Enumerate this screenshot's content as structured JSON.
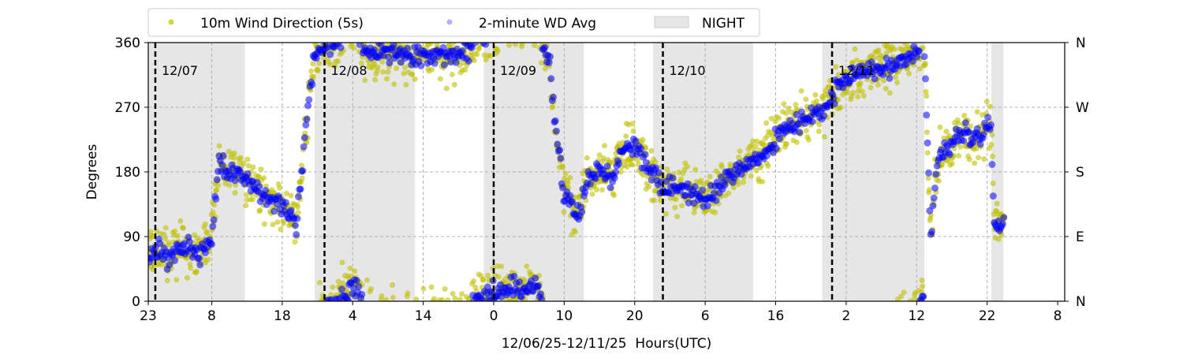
{
  "chart_data": {
    "type": "scatter",
    "xlabel": "12/06/25-12/11/25  Hours(UTC)",
    "ylabel": "Degrees",
    "x_unit": "hours since 12/06/25 23:00 UTC",
    "xlim": [
      0,
      130
    ],
    "ylim": [
      0,
      360
    ],
    "x_ticks": [
      0,
      9,
      19,
      29,
      39,
      49,
      59,
      69,
      79,
      89,
      99,
      109,
      119,
      129
    ],
    "x_tick_labels": [
      "23",
      "8",
      "18",
      "4",
      "14",
      "0",
      "10",
      "20",
      "6",
      "16",
      "2",
      "12",
      "22",
      "8"
    ],
    "y_ticks": [
      0,
      90,
      180,
      270,
      360
    ],
    "y_tick_labels": [
      "0",
      "90",
      "180",
      "270",
      "360"
    ],
    "y2_tick_labels": [
      "N",
      "E",
      "S",
      "W",
      "N"
    ],
    "grid": true,
    "legend_placement": "top",
    "legend": [
      {
        "label": "10m Wind Direction (5s)",
        "color": "#bfbf00",
        "kind": "point"
      },
      {
        "label": "2-minute WD Avg",
        "color": "#0000ff",
        "kind": "point"
      },
      {
        "label": "NIGHT",
        "color": "#e6e6e6",
        "kind": "patch"
      }
    ],
    "day_markers": [
      {
        "x": 1,
        "label": "12/07"
      },
      {
        "x": 25,
        "label": "12/08"
      },
      {
        "x": 49,
        "label": "12/09"
      },
      {
        "x": 73,
        "label": "12/10"
      },
      {
        "x": 97,
        "label": "12/11"
      }
    ],
    "night_periods": [
      [
        0,
        13.7
      ],
      [
        23.6,
        37.8
      ],
      [
        47.6,
        61.8
      ],
      [
        71.6,
        85.8
      ],
      [
        95.6,
        110.1
      ],
      [
        119.6,
        121.3
      ]
    ],
    "series": [
      {
        "name": "2-minute WD Avg",
        "color": "#0000ff",
        "spread_deg": 14,
        "trend_points": [
          [
            0,
            60
          ],
          [
            1,
            70
          ],
          [
            3,
            60
          ],
          [
            5,
            80
          ],
          [
            7,
            60
          ],
          [
            9,
            90
          ],
          [
            10,
            200
          ],
          [
            11,
            180
          ],
          [
            13,
            175
          ],
          [
            16,
            150
          ],
          [
            19,
            130
          ],
          [
            21,
            110
          ],
          [
            22.5,
            250
          ],
          [
            23.5,
            340
          ],
          [
            26,
            360
          ],
          [
            28,
            370
          ],
          [
            29.5,
            380
          ],
          [
            31,
            345
          ],
          [
            35,
            345
          ],
          [
            40,
            340
          ],
          [
            45,
            345
          ],
          [
            47,
            365
          ],
          [
            50,
            375
          ],
          [
            55,
            380
          ],
          [
            57,
            330
          ],
          [
            58,
            220
          ],
          [
            59,
            150
          ],
          [
            61,
            120
          ],
          [
            62,
            160
          ],
          [
            64,
            180
          ],
          [
            66,
            170
          ],
          [
            67,
            210
          ],
          [
            69,
            215
          ],
          [
            71,
            180
          ],
          [
            73,
            160
          ],
          [
            76,
            155
          ],
          [
            79,
            140
          ],
          [
            82,
            170
          ],
          [
            85,
            190
          ],
          [
            88,
            210
          ],
          [
            90,
            240
          ],
          [
            93,
            255
          ],
          [
            96,
            270
          ],
          [
            98,
            300
          ],
          [
            102,
            320
          ],
          [
            106,
            330
          ],
          [
            109,
            345
          ],
          [
            110,
            370
          ],
          [
            111,
            90
          ],
          [
            112,
            200
          ],
          [
            115,
            230
          ],
          [
            118,
            230
          ],
          [
            119.5,
            250
          ],
          [
            120,
            110
          ],
          [
            121.5,
            110
          ]
        ]
      },
      {
        "name": "10m Wind Direction (5s)",
        "color": "#bfbf00",
        "spread_deg": 34,
        "trend_points": "same as 2-minute WD Avg"
      }
    ]
  }
}
